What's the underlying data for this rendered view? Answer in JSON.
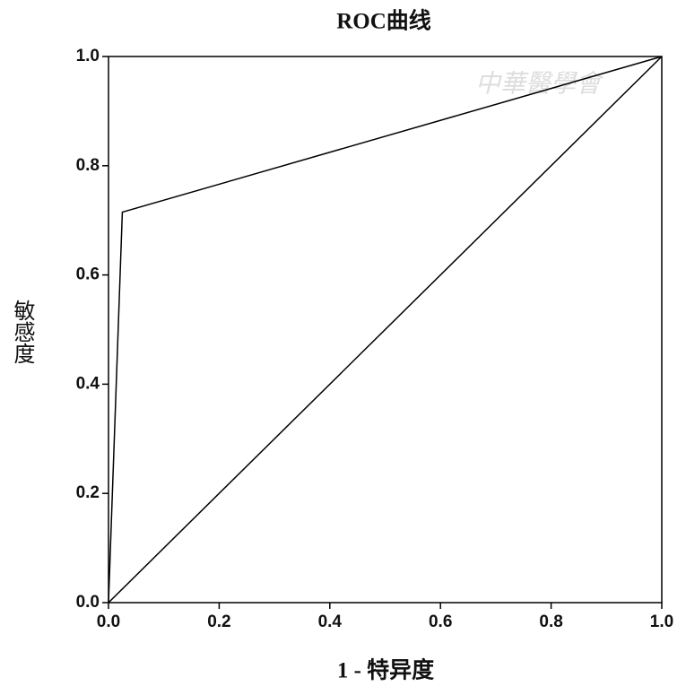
{
  "chart_data": {
    "type": "line",
    "title": "ROC曲线",
    "x_label": "1 - 特异度",
    "y_label": "敏感度",
    "watermark": "中華醫學會",
    "xlim": [
      0,
      1
    ],
    "ylim": [
      0,
      1
    ],
    "xticks": [
      {
        "value": 0,
        "label": "0.0"
      },
      0.2,
      0.4,
      0.6,
      0.8,
      {
        "value": 1,
        "label": "1.0"
      }
    ],
    "yticks": [
      {
        "value": 0,
        "label": "0.0"
      },
      0.2,
      0.4,
      0.6,
      0.8,
      {
        "value": 1,
        "label": "1.0"
      }
    ],
    "series": [
      {
        "color": "#000000",
        "x": [
          0,
          0.025,
          1
        ],
        "values": [
          0,
          0.715,
          1
        ]
      },
      {
        "color": "#000000",
        "x": [
          0,
          1
        ],
        "values": [
          0,
          1
        ]
      }
    ]
  }
}
